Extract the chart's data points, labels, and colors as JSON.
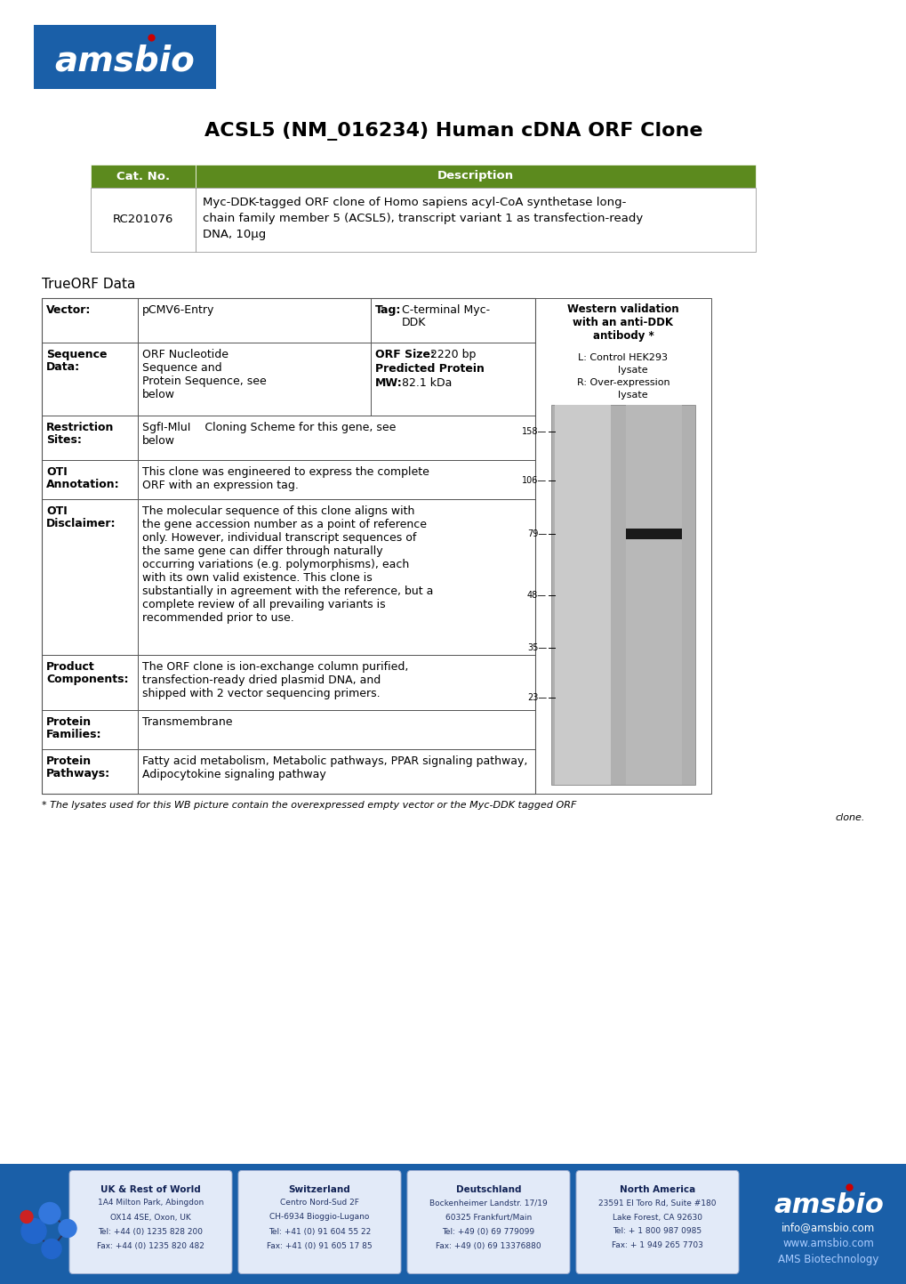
{
  "title": "ACSL5 (NM_016234) Human cDNA ORF Clone",
  "bg_color": "#ffffff",
  "header_green": "#5c8a1e",
  "logo_blue": "#1a5fa8",
  "table_header": {
    "cat_no": "Cat. No.",
    "description": "Description"
  },
  "catalog_entry": {
    "cat_no": "RC201076",
    "description_lines": [
      "Myc-DDK-tagged ORF clone of Homo sapiens acyl-CoA synthetase long-",
      "chain family member 5 (ACSL5), transcript variant 1 as transfection-ready",
      "DNA, 10μg"
    ]
  },
  "section_title": "TrueORF Data",
  "western_blot_header": "Western validation\nwith an anti-DDK\nantibody *",
  "western_blot_caption_lines": [
    "L: Control HEK293",
    "      lysate",
    "R: Over-expression",
    "      lysate"
  ],
  "western_blot_markers": [
    "158",
    "106",
    "79",
    "48",
    "35",
    "23"
  ],
  "table_rows": [
    {
      "label": "Vector:",
      "label2": "",
      "col2": "pCMV6-Entry",
      "has_col3": true,
      "col3_bold": "Tag:",
      "col3_rest": " C-terminal Myc-\nDDK"
    },
    {
      "label": "Sequence",
      "label2": "Data:",
      "col2": "ORF Nucleotide\nSequence and\nProtein Sequence, see\nbelow",
      "has_col3": true,
      "col3_bold": "ORF Size:",
      "col3_rest": " 2220 bp\n",
      "col3_bold2": "Predicted Protein\n",
      "col3_bold3": "MW:",
      "col3_rest2": " 82.1 kDa"
    },
    {
      "label": "Restriction",
      "label2": "Sites:",
      "col2": "SgfI-MluI    Cloning Scheme for this gene, see\nbelow",
      "has_col3": false
    },
    {
      "label": "OTI",
      "label2": "Annotation:",
      "col2": "This clone was engineered to express the complete\nORF with an expression tag.",
      "has_col3": false
    },
    {
      "label": "OTI",
      "label2": "Disclaimer:",
      "col2": "The molecular sequence of this clone aligns with\nthe gene accession number as a point of reference\nonly. However, individual transcript sequences of\nthe same gene can differ through naturally\noccurring variations (e.g. polymorphisms), each\nwith its own valid existence. This clone is\nsubstantially in agreement with the reference, but a\ncomplete review of all prevailing variants is\nrecommended prior to use.",
      "has_col3": false
    },
    {
      "label": "Product",
      "label2": "Components:",
      "col2": "The ORF clone is ion-exchange column purified,\ntransfection-ready dried plasmid DNA, and\nshipped with 2 vector sequencing primers.",
      "has_col3": false
    },
    {
      "label": "Protein",
      "label2": "Families:",
      "col2": "Transmembrane",
      "has_col3": false
    },
    {
      "label": "Protein",
      "label2": "Pathways:",
      "col2": "Fatty acid metabolism, Metabolic pathways, PPAR signaling pathway,\nAdipocytokine signaling pathway",
      "has_col3": false
    }
  ],
  "footnote_line1": "* The lysates used for this WB picture contain the overexpressed empty vector or the Myc-DDK tagged ORF",
  "footnote_line2": "clone.",
  "footer_regions": [
    {
      "title": "UK & Rest of World",
      "lines": [
        "1A4 Milton Park, Abingdon",
        "OX14 4SE, Oxon, UK",
        "Tel: +44 (0) 1235 828 200",
        "Fax: +44 (0) 1235 820 482"
      ]
    },
    {
      "title": "Switzerland",
      "lines": [
        "Centro Nord-Sud 2F",
        "CH-6934 Bioggio-Lugano",
        "Tel: +41 (0) 91 604 55 22",
        "Fax: +41 (0) 91 605 17 85"
      ]
    },
    {
      "title": "Deutschland",
      "lines": [
        "Bockenheimer Landstr. 17/19",
        "60325 Frankfurt/Main",
        "Tel: +49 (0) 69 779099",
        "Fax: +49 (0) 69 13376880"
      ]
    },
    {
      "title": "North America",
      "lines": [
        "23591 El Toro Rd, Suite #180",
        "Lake Forest, CA 92630",
        "Tel: + 1 800 987 0985",
        "Fax: + 1 949 265 7703"
      ]
    }
  ],
  "footer_contact": [
    "info@amsbio.com",
    "www.amsbio.com",
    "AMS Biotechnology"
  ]
}
